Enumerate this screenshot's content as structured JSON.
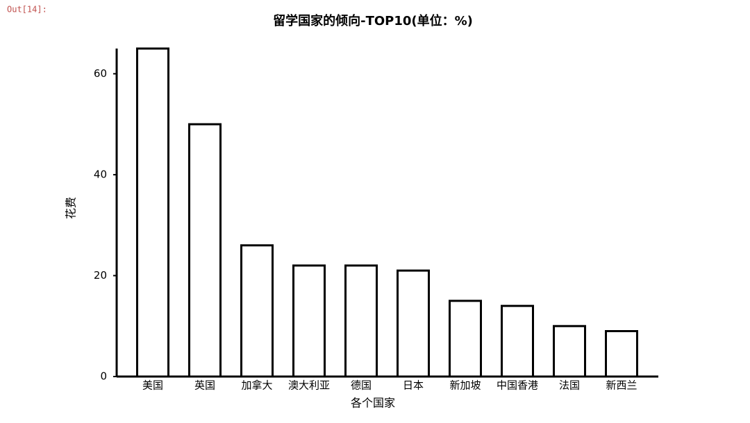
{
  "prompt": "Out[14]:",
  "chart_data": {
    "type": "bar",
    "title": "留学国家的倾向-TOP10(单位：%)",
    "x_label": "各个国家",
    "y_label": "花费",
    "categories": [
      "美国",
      "英国",
      "加拿大",
      "澳大利亚",
      "德国",
      "日本",
      "新加坡",
      "中国香港",
      "法国",
      "新西兰"
    ],
    "values": [
      65,
      50,
      26,
      22,
      22,
      21,
      15,
      14,
      10,
      9
    ],
    "color": "#ffffff",
    "edgecolor": "#000000",
    "ylim": [
      0,
      65
    ],
    "yticks": [
      0,
      20,
      40,
      60
    ],
    "grid": false
  }
}
